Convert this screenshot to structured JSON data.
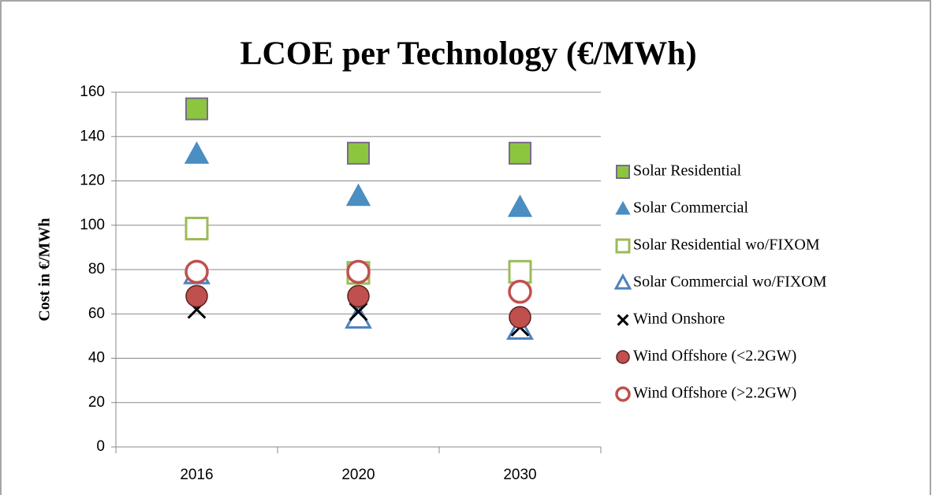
{
  "chart_data": {
    "type": "scatter",
    "title": "LCOE per Technology (€/MWh)",
    "y_label": "Cost in €/MWh",
    "categories": [
      "2016",
      "2020",
      "2030"
    ],
    "ylim": [
      0,
      160
    ],
    "yticks": [
      0,
      20,
      40,
      60,
      80,
      100,
      120,
      140,
      160
    ],
    "grid": true,
    "legend": "right",
    "series": [
      {
        "name": "Solar Residential",
        "color": "#8cc63f",
        "marker": "square",
        "filled": true,
        "values": [
          152.5,
          132.5,
          132.5
        ]
      },
      {
        "name": "Solar Commercial",
        "color": "#4a8ec2",
        "marker": "triangle",
        "filled": true,
        "values": [
          132,
          113,
          108
        ]
      },
      {
        "name": "Solar Residential wo/FIXOM",
        "color": "#9bbb59",
        "marker": "square",
        "filled": false,
        "values": [
          98.5,
          78.5,
          79
        ]
      },
      {
        "name": "Solar Commercial wo/FIXOM",
        "color": "#4f81bd",
        "marker": "triangle",
        "filled": false,
        "values": [
          78,
          58,
          53
        ]
      },
      {
        "name": "Wind Onshore",
        "color": "#000000",
        "marker": "x",
        "filled": true,
        "values": [
          62,
          61,
          54
        ]
      },
      {
        "name": "Wind Offshore (<2.2GW)",
        "color": "#c0504d",
        "marker": "circle",
        "filled": true,
        "values": [
          68,
          68,
          58.5
        ]
      },
      {
        "name": "Wind Offshore (>2.2GW)",
        "color": "#c0504d",
        "marker": "circle",
        "filled": false,
        "values": [
          79,
          79,
          70
        ]
      }
    ]
  }
}
